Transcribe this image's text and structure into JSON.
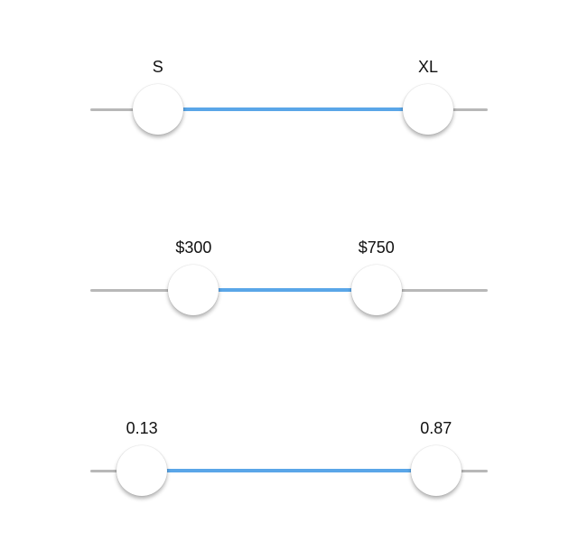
{
  "colors": {
    "track": "#b8b8b8",
    "fill": "#5aa6e8",
    "thumb": "#ffffff"
  },
  "sliders": [
    {
      "name": "size-range",
      "low_label": "S",
      "high_label": "XL",
      "low_fraction": 0.17,
      "high_fraction": 0.85
    },
    {
      "name": "price-range",
      "low_label": "$300",
      "high_label": "$750",
      "low_fraction": 0.26,
      "high_fraction": 0.72
    },
    {
      "name": "value-range",
      "low_label": "0.13",
      "high_label": "0.87",
      "low_fraction": 0.13,
      "high_fraction": 0.87
    }
  ]
}
